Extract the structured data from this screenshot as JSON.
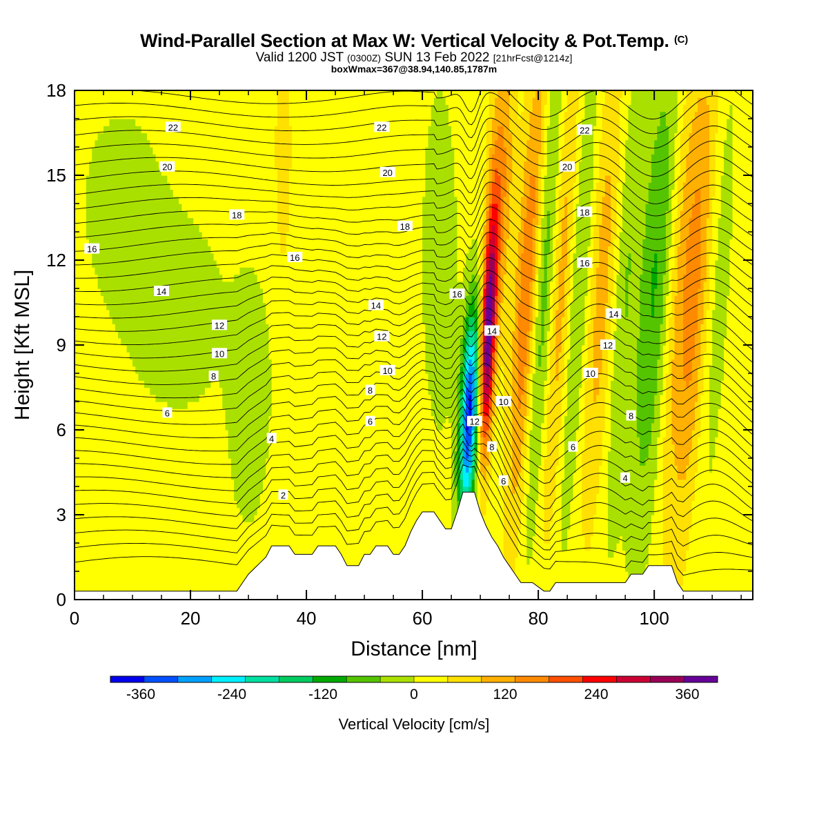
{
  "chart_data": {
    "type": "heatmap",
    "title": "Wind-Parallel Section at Max W: Vertical Velocity & Pot.Temp.",
    "title_mark": "(C)",
    "subtitle_parts": [
      "Valid 1200 JST ",
      "(0300Z)",
      " SUN 13 Feb 2022 ",
      "[21hrFcst@1214z]"
    ],
    "subtitle2": "boxWmax=367@38.94,140.85,1787m",
    "xlabel": "Distance [nm]",
    "ylabel": "Height [Kft MSL]",
    "xlim": [
      0,
      117
    ],
    "ylim": [
      0,
      18
    ],
    "x_ticks": [
      0,
      20,
      40,
      60,
      80,
      100
    ],
    "y_ticks": [
      0,
      3,
      6,
      9,
      12,
      15,
      18
    ],
    "colorbar": {
      "title": "Vertical Velocity [cm/s]",
      "range": [
        -400,
        400
      ],
      "labels": [
        -360,
        -240,
        -120,
        0,
        120,
        240,
        360
      ],
      "colors": [
        "#0000ee",
        "#0050ff",
        "#00a0ff",
        "#00f0ff",
        "#00e0a0",
        "#00cc60",
        "#00aa00",
        "#55c400",
        "#aae000",
        "#ffff00",
        "#ffe000",
        "#ffb000",
        "#ff8a00",
        "#ff5000",
        "#ff0000",
        "#cc0033",
        "#990055",
        "#660099"
      ]
    },
    "vertical_velocity_features": [
      {
        "x": 68,
        "z_range": [
          4,
          10
        ],
        "w": -380,
        "desc_value": "min"
      },
      {
        "x": 71,
        "z_range": [
          4,
          13
        ],
        "w": 367,
        "desc_value": "max"
      },
      {
        "x": 76,
        "z_range": [
          3,
          18
        ],
        "w": 160
      },
      {
        "x": 84,
        "z_range": [
          3,
          18
        ],
        "w": 100
      },
      {
        "x": 98,
        "z_range": [
          4,
          14
        ],
        "w": -80
      },
      {
        "x": 105,
        "z_range": [
          6,
          18
        ],
        "w": 120
      }
    ],
    "theta_contour_labels": [
      {
        "x": 17,
        "z": 16.7,
        "v": "22"
      },
      {
        "x": 53,
        "z": 16.7,
        "v": "22"
      },
      {
        "x": 88,
        "z": 16.6,
        "v": "22"
      },
      {
        "x": 16,
        "z": 15.3,
        "v": "20"
      },
      {
        "x": 54,
        "z": 15.1,
        "v": "20"
      },
      {
        "x": 85,
        "z": 15.3,
        "v": "20"
      },
      {
        "x": 28,
        "z": 13.6,
        "v": "18"
      },
      {
        "x": 57,
        "z": 13.2,
        "v": "18"
      },
      {
        "x": 88,
        "z": 13.7,
        "v": "18"
      },
      {
        "x": 3,
        "z": 12.4,
        "v": "16"
      },
      {
        "x": 38,
        "z": 12.1,
        "v": "16"
      },
      {
        "x": 66,
        "z": 10.8,
        "v": "16"
      },
      {
        "x": 88,
        "z": 11.9,
        "v": "16"
      },
      {
        "x": 15,
        "z": 10.9,
        "v": "14"
      },
      {
        "x": 52,
        "z": 10.4,
        "v": "14"
      },
      {
        "x": 72,
        "z": 9.5,
        "v": "14"
      },
      {
        "x": 93,
        "z": 10.1,
        "v": "14"
      },
      {
        "x": 25,
        "z": 9.7,
        "v": "12"
      },
      {
        "x": 53,
        "z": 9.3,
        "v": "12"
      },
      {
        "x": 69,
        "z": 6.3,
        "v": "12"
      },
      {
        "x": 92,
        "z": 9.0,
        "v": "12"
      },
      {
        "x": 25,
        "z": 8.7,
        "v": "10"
      },
      {
        "x": 54,
        "z": 8.1,
        "v": "10"
      },
      {
        "x": 74,
        "z": 7.0,
        "v": "10"
      },
      {
        "x": 89,
        "z": 8.0,
        "v": "10"
      },
      {
        "x": 24,
        "z": 7.9,
        "v": "8"
      },
      {
        "x": 51,
        "z": 7.4,
        "v": "8"
      },
      {
        "x": 72,
        "z": 5.4,
        "v": "8"
      },
      {
        "x": 96,
        "z": 6.5,
        "v": "8"
      },
      {
        "x": 16,
        "z": 6.6,
        "v": "6"
      },
      {
        "x": 51,
        "z": 6.3,
        "v": "6"
      },
      {
        "x": 74,
        "z": 4.2,
        "v": "6"
      },
      {
        "x": 86,
        "z": 5.4,
        "v": "6"
      },
      {
        "x": 34,
        "z": 5.7,
        "v": "4"
      },
      {
        "x": 95,
        "z": 4.3,
        "v": "4"
      },
      {
        "x": 36,
        "z": 3.7,
        "v": "2"
      }
    ],
    "terrain_profile": [
      [
        0,
        0.3
      ],
      [
        28,
        0.3
      ],
      [
        29,
        0.6
      ],
      [
        30,
        0.9
      ],
      [
        31,
        1.1
      ],
      [
        32,
        1.3
      ],
      [
        33,
        1.5
      ],
      [
        34,
        1.9
      ],
      [
        37,
        1.9
      ],
      [
        38,
        1.6
      ],
      [
        41,
        1.6
      ],
      [
        42,
        1.9
      ],
      [
        45,
        1.9
      ],
      [
        46,
        1.6
      ],
      [
        47,
        1.2
      ],
      [
        49,
        1.2
      ],
      [
        50,
        1.6
      ],
      [
        51,
        1.6
      ],
      [
        52,
        1.9
      ],
      [
        54,
        1.9
      ],
      [
        55,
        1.6
      ],
      [
        56,
        1.6
      ],
      [
        57,
        1.9
      ],
      [
        58,
        2.4
      ],
      [
        59,
        2.8
      ],
      [
        60,
        3.1
      ],
      [
        62,
        3.1
      ],
      [
        63,
        2.8
      ],
      [
        64,
        2.5
      ],
      [
        65,
        2.5
      ],
      [
        66,
        3.1
      ],
      [
        67,
        3.8
      ],
      [
        69,
        3.8
      ],
      [
        70,
        3.1
      ],
      [
        71,
        2.6
      ],
      [
        72,
        2.2
      ],
      [
        73,
        1.9
      ],
      [
        74,
        1.5
      ],
      [
        75,
        1.2
      ],
      [
        76,
        0.9
      ],
      [
        77,
        0.6
      ],
      [
        78,
        0.6
      ],
      [
        79,
        0.6
      ],
      [
        81,
        0.3
      ],
      [
        82,
        0.3
      ],
      [
        83,
        0.6
      ],
      [
        86,
        0.6
      ],
      [
        95,
        0.6
      ],
      [
        96,
        0.9
      ],
      [
        98,
        0.9
      ],
      [
        99,
        1.2
      ],
      [
        102,
        1.2
      ],
      [
        103,
        1.2
      ],
      [
        104,
        0.6
      ],
      [
        105,
        0.3
      ],
      [
        117,
        0.3
      ]
    ]
  }
}
